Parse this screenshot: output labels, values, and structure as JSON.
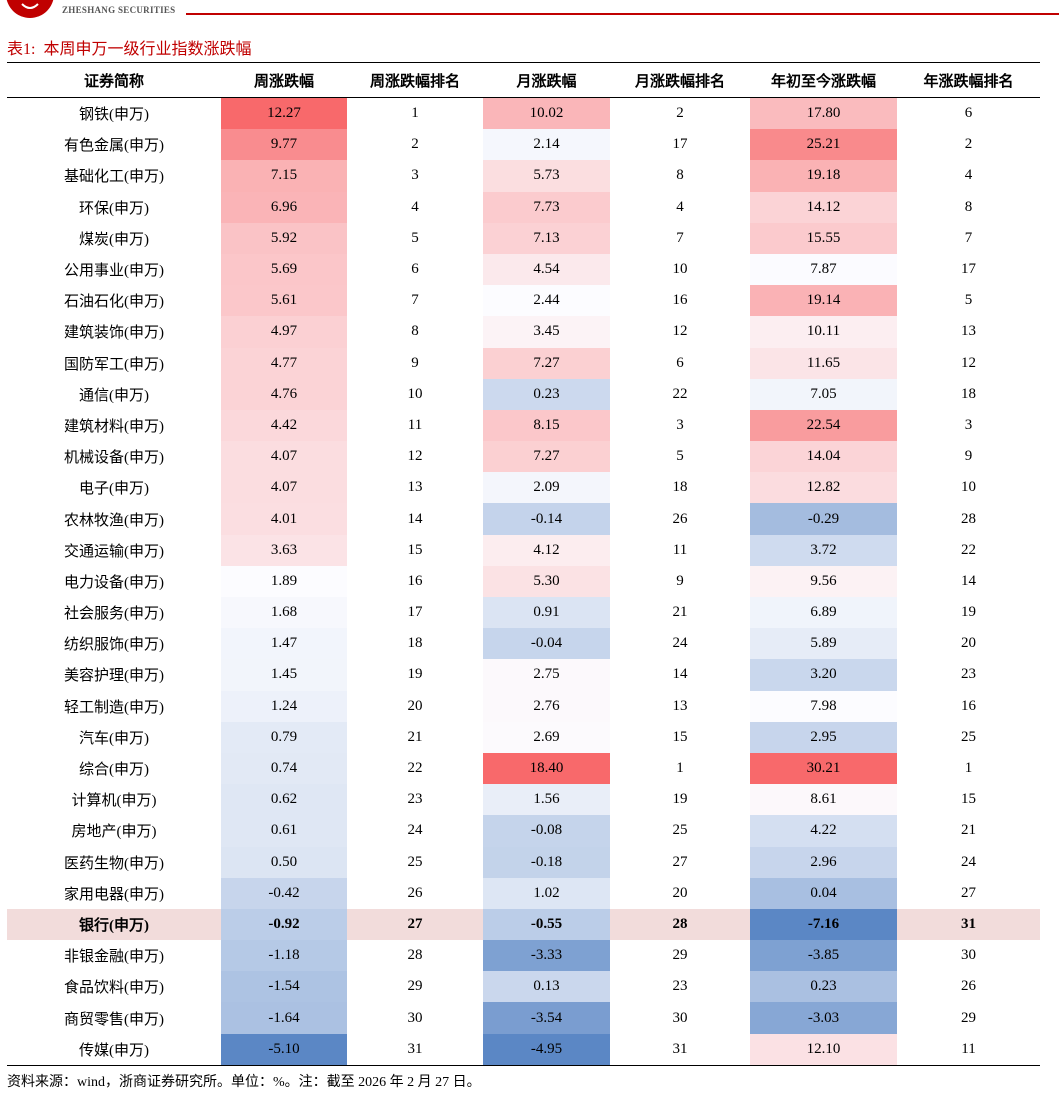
{
  "header": {
    "brand": "ZHESHANG SECURITIES"
  },
  "title": "表1:  本周申万一级行业指数涨跌幅",
  "table": {
    "header": [
      "证券简称",
      "周涨跌幅",
      "周涨跌幅排名",
      "月涨跌幅",
      "月涨跌幅排名",
      "年初至今涨跌幅",
      "年涨跌幅排名"
    ],
    "heatmap_columns": [
      1,
      3,
      5
    ],
    "heatmap_colors": {
      "low": "#5b87c5",
      "mid": "#fcfcff",
      "high": "#f8696b"
    },
    "highlighted_row": 26,
    "highlight_color": "#f2dcdb",
    "rows": [
      [
        "钢铁(申万)",
        "12.27",
        1,
        "10.02",
        2,
        "17.80",
        6
      ],
      [
        "有色金属(申万)",
        "9.77",
        2,
        "2.14",
        17,
        "25.21",
        2
      ],
      [
        "基础化工(申万)",
        "7.15",
        3,
        "5.73",
        8,
        "19.18",
        4
      ],
      [
        "环保(申万)",
        "6.96",
        4,
        "7.73",
        4,
        "14.12",
        8
      ],
      [
        "煤炭(申万)",
        "5.92",
        5,
        "7.13",
        7,
        "15.55",
        7
      ],
      [
        "公用事业(申万)",
        "5.69",
        6,
        "4.54",
        10,
        "7.87",
        17
      ],
      [
        "石油石化(申万)",
        "5.61",
        7,
        "2.44",
        16,
        "19.14",
        5
      ],
      [
        "建筑装饰(申万)",
        "4.97",
        8,
        "3.45",
        12,
        "10.11",
        13
      ],
      [
        "国防军工(申万)",
        "4.77",
        9,
        "7.27",
        6,
        "11.65",
        12
      ],
      [
        "通信(申万)",
        "4.76",
        10,
        "0.23",
        22,
        "7.05",
        18
      ],
      [
        "建筑材料(申万)",
        "4.42",
        11,
        "8.15",
        3,
        "22.54",
        3
      ],
      [
        "机械设备(申万)",
        "4.07",
        12,
        "7.27",
        5,
        "14.04",
        9
      ],
      [
        "电子(申万)",
        "4.07",
        13,
        "2.09",
        18,
        "12.82",
        10
      ],
      [
        "农林牧渔(申万)",
        "4.01",
        14,
        "-0.14",
        26,
        "-0.29",
        28
      ],
      [
        "交通运输(申万)",
        "3.63",
        15,
        "4.12",
        11,
        "3.72",
        22
      ],
      [
        "电力设备(申万)",
        "1.89",
        16,
        "5.30",
        9,
        "9.56",
        14
      ],
      [
        "社会服务(申万)",
        "1.68",
        17,
        "0.91",
        21,
        "6.89",
        19
      ],
      [
        "纺织服饰(申万)",
        "1.47",
        18,
        "-0.04",
        24,
        "5.89",
        20
      ],
      [
        "美容护理(申万)",
        "1.45",
        19,
        "2.75",
        14,
        "3.20",
        23
      ],
      [
        "轻工制造(申万)",
        "1.24",
        20,
        "2.76",
        13,
        "7.98",
        16
      ],
      [
        "汽车(申万)",
        "0.79",
        21,
        "2.69",
        15,
        "2.95",
        25
      ],
      [
        "综合(申万)",
        "0.74",
        22,
        "18.40",
        1,
        "30.21",
        1
      ],
      [
        "计算机(申万)",
        "0.62",
        23,
        "1.56",
        19,
        "8.61",
        15
      ],
      [
        "房地产(申万)",
        "0.61",
        24,
        "-0.08",
        25,
        "4.22",
        21
      ],
      [
        "医药生物(申万)",
        "0.50",
        25,
        "-0.18",
        27,
        "2.96",
        24
      ],
      [
        "家用电器(申万)",
        "-0.42",
        26,
        "1.02",
        20,
        "0.04",
        27
      ],
      [
        "银行(申万)",
        "-0.92",
        27,
        "-0.55",
        28,
        "-7.16",
        31
      ],
      [
        "非银金融(申万)",
        "-1.18",
        28,
        "-3.33",
        29,
        "-3.85",
        30
      ],
      [
        "食品饮料(申万)",
        "-1.54",
        29,
        "0.13",
        23,
        "0.23",
        26
      ],
      [
        "商贸零售(申万)",
        "-1.64",
        30,
        "-3.54",
        30,
        "-3.03",
        29
      ],
      [
        "传媒(申万)",
        "-5.10",
        31,
        "-4.95",
        31,
        "12.10",
        11
      ]
    ]
  },
  "source": "资料来源：wind，浙商证券研究所。单位：%。注：截至 2026 年 2 月 27 日。"
}
